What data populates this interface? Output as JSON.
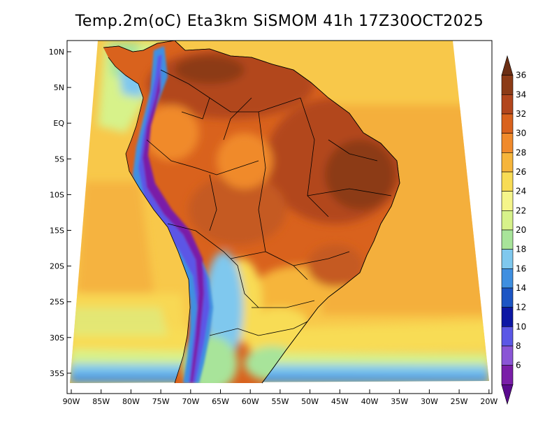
{
  "title": "Temp.2m(oC) Eta3km SiSMOM 41h 17Z30OCT2025",
  "latitude_ticks": [
    "10N",
    "5N",
    "EQ",
    "5S",
    "10S",
    "15S",
    "20S",
    "25S",
    "30S",
    "35S"
  ],
  "longitude_ticks": [
    "90W",
    "85W",
    "80W",
    "75W",
    "70W",
    "65W",
    "60W",
    "55W",
    "50W",
    "45W",
    "40W",
    "35W",
    "30W",
    "25W",
    "20W"
  ],
  "colorbar": {
    "labels": [
      "36",
      "34",
      "32",
      "30",
      "28",
      "26",
      "24",
      "22",
      "20",
      "18",
      "16",
      "14",
      "12",
      "10",
      "8",
      "6"
    ],
    "colors": [
      "#6b2e14",
      "#8c3b17",
      "#b2461d",
      "#d9621d",
      "#f08a2b",
      "#f6b53b",
      "#f8dc55",
      "#f5f58a",
      "#d7f28a",
      "#a8e49a",
      "#7fc8ee",
      "#3f8fe0",
      "#1c55c4",
      "#0c17a4",
      "#5b57e6",
      "#8a55d6",
      "#7a1ea8",
      "#5a0a8e"
    ]
  },
  "colors": {
    "ocean_warm": "#f8c84a",
    "ocean_hot": "#f3aa3b",
    "land_hot": "#c55a22",
    "land_very_hot": "#8f3e18",
    "andes_cold": "#3f8fe0",
    "andes_very_cold": "#5b2aa8",
    "border": "#000000"
  }
}
